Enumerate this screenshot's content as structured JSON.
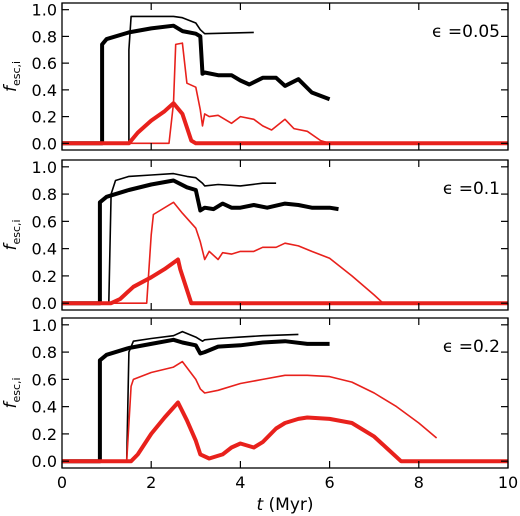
{
  "colors": {
    "black": "#000000",
    "red": "#e8211c"
  },
  "ylabel": {
    "main": "f",
    "sub": "esc,i"
  },
  "xlabel": {
    "var": "t",
    "unit": " (Myr)"
  },
  "chart_data": [
    {
      "type": "line",
      "label": "ϵ =0.05",
      "xlim": [
        0,
        10
      ],
      "ylim": [
        -0.05,
        1.05
      ],
      "yticks": [
        "0.0",
        "0.2",
        "0.4",
        "0.6",
        "0.8",
        "1.0"
      ],
      "series": [
        {
          "color": "black",
          "weight": "thin",
          "x": [
            1.5,
            1.5,
            1.55,
            2.5,
            2.7,
            3.0,
            3.1,
            3.2,
            4.3
          ],
          "y": [
            0,
            0.7,
            0.95,
            0.95,
            0.94,
            0.9,
            0.85,
            0.82,
            0.83
          ]
        },
        {
          "color": "black",
          "weight": "thick",
          "x": [
            0,
            0.9,
            0.9,
            1.0,
            1.5,
            2.0,
            2.5,
            2.7,
            3.0,
            3.1,
            3.15,
            3.2,
            3.5,
            3.8,
            4.0,
            4.2,
            4.5,
            4.8,
            5.0,
            5.3,
            5.6,
            6.0
          ],
          "y": [
            0,
            0,
            0.74,
            0.78,
            0.83,
            0.86,
            0.88,
            0.84,
            0.82,
            0.8,
            0.52,
            0.53,
            0.51,
            0.51,
            0.47,
            0.44,
            0.49,
            0.49,
            0.43,
            0.48,
            0.38,
            0.33
          ]
        },
        {
          "color": "red",
          "weight": "thin",
          "x": [
            0,
            2.4,
            2.5,
            2.55,
            2.7,
            2.8,
            3.0,
            3.1,
            3.15,
            3.2,
            3.3,
            3.5,
            3.8,
            4.0,
            4.3,
            4.5,
            4.7,
            5.0,
            5.2,
            5.5,
            5.8,
            6.0,
            10
          ],
          "y": [
            0,
            0,
            0.3,
            0.74,
            0.75,
            0.45,
            0.42,
            0.25,
            0.13,
            0.22,
            0.2,
            0.21,
            0.15,
            0.2,
            0.18,
            0.13,
            0.1,
            0.18,
            0.11,
            0.09,
            0.02,
            0,
            0
          ]
        },
        {
          "color": "red",
          "weight": "thick",
          "x": [
            0,
            1.5,
            1.7,
            2.0,
            2.3,
            2.5,
            2.7,
            2.9,
            3.0,
            10
          ],
          "y": [
            0,
            0,
            0.08,
            0.17,
            0.24,
            0.3,
            0.22,
            0.02,
            0,
            0
          ]
        }
      ]
    },
    {
      "type": "line",
      "label": "ϵ =0.1",
      "xlim": [
        0,
        10
      ],
      "ylim": [
        -0.05,
        1.05
      ],
      "yticks": [
        "0.0",
        "0.2",
        "0.4",
        "0.6",
        "0.8",
        "1.0"
      ],
      "series": [
        {
          "color": "black",
          "weight": "thin",
          "x": [
            1.05,
            1.1,
            1.2,
            1.5,
            2.0,
            2.5,
            2.8,
            3.0,
            3.15,
            3.2,
            3.5,
            4.0,
            4.5,
            4.8
          ],
          "y": [
            0,
            0.8,
            0.9,
            0.93,
            0.94,
            0.95,
            0.93,
            0.92,
            0.88,
            0.86,
            0.87,
            0.86,
            0.88,
            0.88
          ]
        },
        {
          "color": "black",
          "weight": "thick",
          "x": [
            0,
            0.85,
            0.85,
            1.0,
            1.5,
            2.0,
            2.5,
            2.8,
            3.0,
            3.1,
            3.2,
            3.4,
            3.6,
            3.8,
            4.0,
            4.3,
            4.6,
            5.0,
            5.3,
            5.6,
            6.0,
            6.2
          ],
          "y": [
            0,
            0,
            0.74,
            0.78,
            0.83,
            0.87,
            0.9,
            0.85,
            0.83,
            0.68,
            0.7,
            0.69,
            0.73,
            0.7,
            0.7,
            0.72,
            0.7,
            0.73,
            0.72,
            0.7,
            0.7,
            0.69
          ]
        },
        {
          "color": "red",
          "weight": "thin",
          "x": [
            0,
            1.9,
            2.0,
            2.05,
            2.5,
            2.7,
            3.0,
            3.1,
            3.2,
            3.3,
            3.5,
            3.6,
            3.8,
            4.0,
            4.3,
            4.5,
            4.8,
            5.0,
            5.3,
            5.6,
            6.0,
            6.5,
            7.0,
            7.2,
            10
          ],
          "y": [
            0,
            0,
            0.5,
            0.65,
            0.74,
            0.66,
            0.55,
            0.45,
            0.32,
            0.38,
            0.32,
            0.37,
            0.36,
            0.38,
            0.38,
            0.41,
            0.41,
            0.44,
            0.42,
            0.38,
            0.33,
            0.2,
            0.06,
            0,
            0
          ]
        },
        {
          "color": "red",
          "weight": "thick",
          "x": [
            0,
            1.1,
            1.3,
            1.6,
            2.0,
            2.3,
            2.6,
            2.65,
            2.7,
            2.9,
            10
          ],
          "y": [
            0,
            0,
            0.03,
            0.12,
            0.19,
            0.25,
            0.32,
            0.25,
            0.2,
            0,
            0
          ]
        }
      ]
    },
    {
      "type": "line",
      "label": "ϵ =0.2",
      "xlim": [
        0,
        10
      ],
      "ylim": [
        -0.05,
        1.05
      ],
      "yticks": [
        "0.0",
        "0.2",
        "0.4",
        "0.6",
        "0.8",
        "1.0"
      ],
      "series": [
        {
          "color": "black",
          "weight": "thin",
          "x": [
            1.45,
            1.5,
            1.6,
            2.0,
            2.5,
            2.7,
            3.0,
            3.15,
            3.2,
            3.5,
            4.0,
            4.5,
            5.3
          ],
          "y": [
            0,
            0.8,
            0.88,
            0.9,
            0.92,
            0.95,
            0.91,
            0.88,
            0.89,
            0.9,
            0.91,
            0.92,
            0.93
          ]
        },
        {
          "color": "black",
          "weight": "thick",
          "x": [
            0,
            0.85,
            0.85,
            1.0,
            1.5,
            2.0,
            2.5,
            2.7,
            3.0,
            3.1,
            3.2,
            3.5,
            4.0,
            4.5,
            5.0,
            5.5,
            6.0
          ],
          "y": [
            0,
            0,
            0.74,
            0.78,
            0.83,
            0.86,
            0.89,
            0.87,
            0.85,
            0.79,
            0.8,
            0.84,
            0.85,
            0.87,
            0.88,
            0.86,
            0.86
          ]
        },
        {
          "color": "red",
          "weight": "thin",
          "x": [
            0,
            1.45,
            1.55,
            1.6,
            2.0,
            2.5,
            2.7,
            3.0,
            3.1,
            3.2,
            3.5,
            4.0,
            4.5,
            5.0,
            5.5,
            6.0,
            6.5,
            7.0,
            7.5,
            8.0,
            8.4
          ],
          "y": [
            0,
            0,
            0.55,
            0.6,
            0.65,
            0.69,
            0.73,
            0.6,
            0.53,
            0.5,
            0.52,
            0.57,
            0.6,
            0.63,
            0.63,
            0.62,
            0.58,
            0.5,
            0.4,
            0.28,
            0.17
          ]
        },
        {
          "color": "red",
          "weight": "thick",
          "x": [
            0,
            1.55,
            1.7,
            2.0,
            2.3,
            2.6,
            2.8,
            3.0,
            3.1,
            3.3,
            3.6,
            3.8,
            4.0,
            4.3,
            4.5,
            4.8,
            5.0,
            5.3,
            5.5,
            6.0,
            6.5,
            7.0,
            7.3,
            7.6,
            10
          ],
          "y": [
            0,
            0,
            0.05,
            0.2,
            0.32,
            0.43,
            0.3,
            0.15,
            0.05,
            0.02,
            0.05,
            0.1,
            0.13,
            0.1,
            0.14,
            0.24,
            0.28,
            0.31,
            0.32,
            0.31,
            0.28,
            0.18,
            0.09,
            0,
            0
          ]
        }
      ]
    }
  ],
  "xticks": [
    "0",
    "2",
    "4",
    "6",
    "8",
    "10"
  ]
}
